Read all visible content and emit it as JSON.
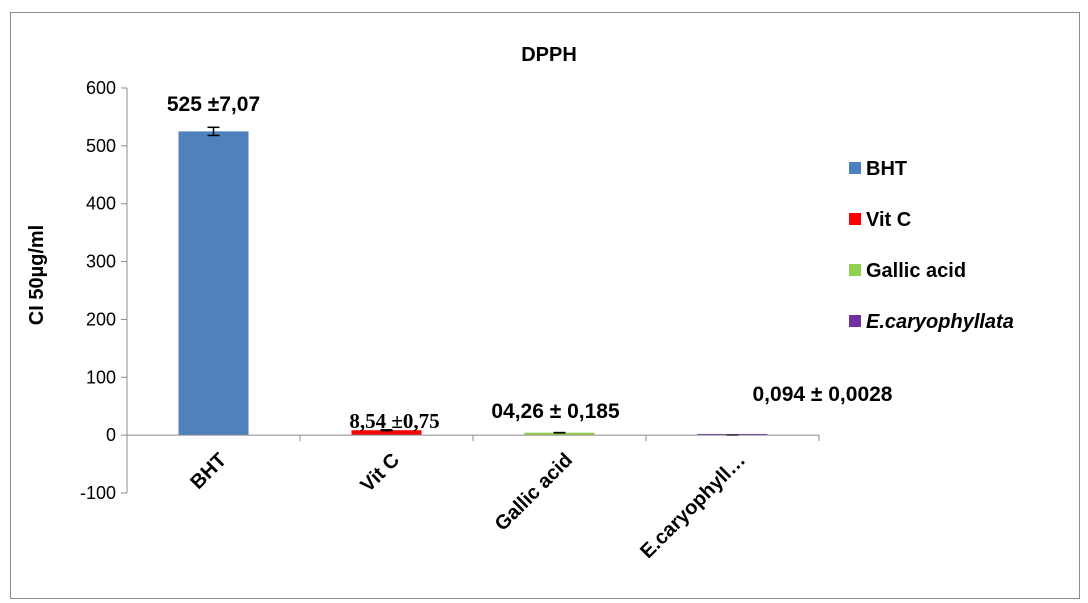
{
  "chart_data": {
    "type": "bar",
    "title": "DPPH",
    "ylabel": "CI 50µg/ml",
    "xlabel": "",
    "ylim": [
      -100,
      600
    ],
    "yticks": [
      -100,
      0,
      100,
      200,
      300,
      400,
      500,
      600
    ],
    "categories": [
      "BHT",
      "Vit C",
      "Gallic acid",
      "E.caryophyll…"
    ],
    "values": [
      525,
      8.54,
      4.26,
      0.094
    ],
    "errors": [
      7.07,
      0.75,
      0.185,
      0.0028
    ],
    "data_labels": [
      "525 ±7,07",
      "8,54 ±0,75",
      "04,26 ± 0,185",
      "0,094 ± 0,0028"
    ],
    "colors": [
      "#4f81bd",
      "#ff0000",
      "#92d050",
      "#7030a0"
    ],
    "grid": false,
    "legend": {
      "placement": "right",
      "entries": [
        "BHT",
        "Vit C",
        "Gallic acid",
        "E.caryophyllata"
      ]
    }
  }
}
